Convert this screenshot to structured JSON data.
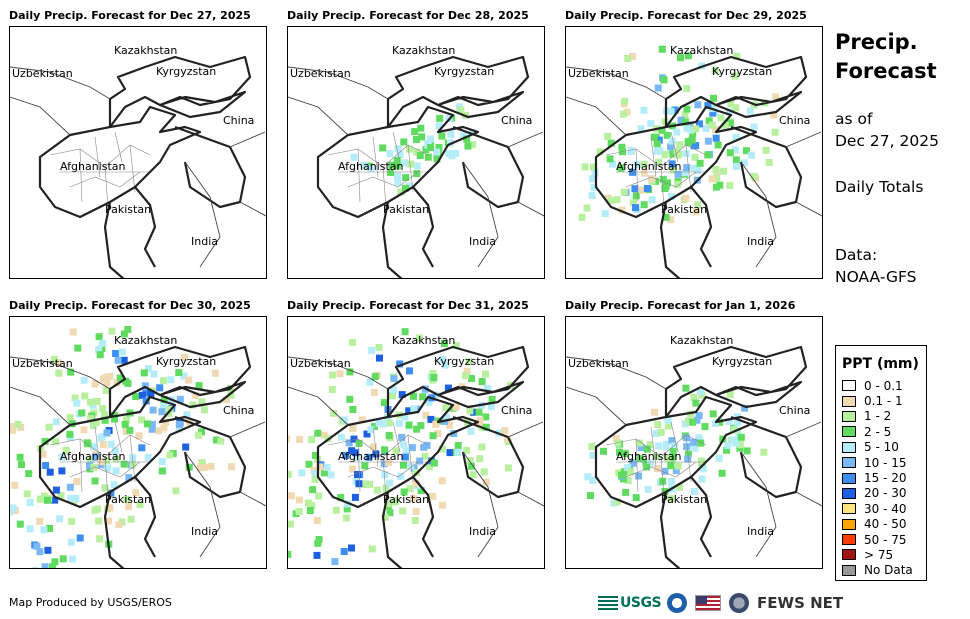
{
  "panels": [
    {
      "title": "Daily Precip. Forecast for Dec 27, 2025",
      "level": 0
    },
    {
      "title": "Daily Precip. Forecast for Dec 28, 2025",
      "level": 1
    },
    {
      "title": "Daily Precip. Forecast for Dec 29, 2025",
      "level": 3
    },
    {
      "title": "Daily Precip. Forecast for Dec 30, 2025",
      "level": 4
    },
    {
      "title": "Daily Precip. Forecast for Dec 31, 2025",
      "level": 4
    },
    {
      "title": "Daily Precip. Forecast for Jan 1, 2026",
      "level": 2
    }
  ],
  "country_labels": {
    "kazakhstan": "Kazakhstan",
    "uzbekistan": "Uzbekistan",
    "kyrgyzstan": "Kyrgyzstan",
    "china": "China",
    "afghanistan": "Afghanistan",
    "pakistan": "Pakistan",
    "india": "India"
  },
  "sidebar": {
    "title_line1": "Precip.",
    "title_line2": "Forecast",
    "asof_line1": "as of",
    "asof_line2": "Dec 27, 2025",
    "totals": "Daily Totals",
    "data_label": "Data:",
    "data_source": "NOAA-GFS"
  },
  "legend": {
    "title": "PPT (mm)",
    "items": [
      {
        "label": "0 - 0.1",
        "color": "#ffffff"
      },
      {
        "label": "0.1 - 1",
        "color": "#f1d9b3"
      },
      {
        "label": "1 - 2",
        "color": "#b8f0a0"
      },
      {
        "label": "2 - 5",
        "color": "#5fdc5f"
      },
      {
        "label": "5 - 10",
        "color": "#b4ecfa"
      },
      {
        "label": "10 - 15",
        "color": "#7ab8f5"
      },
      {
        "label": "15 - 20",
        "color": "#3d8ef0"
      },
      {
        "label": "20 - 30",
        "color": "#1c5fe0"
      },
      {
        "label": "30 - 40",
        "color": "#ffe680"
      },
      {
        "label": "40 - 50",
        "color": "#ffa500"
      },
      {
        "label": "50 - 75",
        "color": "#ff3c00"
      },
      {
        "label": "> 75",
        "color": "#a01414"
      },
      {
        "label": "No Data",
        "color": "#999999"
      }
    ]
  },
  "footer": {
    "credit": "Map Produced by USGS/EROS",
    "usgs": "USGS",
    "fews": "FEWS NET"
  }
}
